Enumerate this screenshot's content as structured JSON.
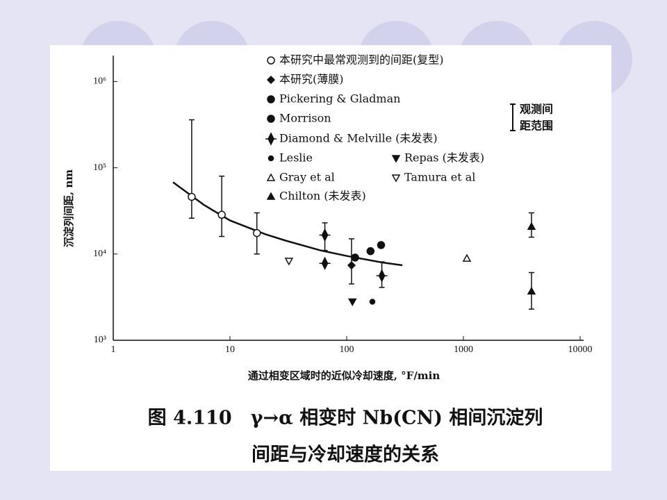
{
  "chart_data": {
    "type": "scatter",
    "x_label": "通过相变区域时的近似冷却速度, °F/min",
    "y_label": "沉淀列间距, nm",
    "log_x": true,
    "log_y": true,
    "xlim": [
      1,
      10000
    ],
    "xticks": [
      1,
      10,
      100,
      1000,
      10000
    ],
    "ylim": [
      1000,
      2000000
    ],
    "yticks": [
      {
        "value": 1000,
        "label": "10³"
      },
      {
        "value": 10000,
        "label": "10⁴"
      },
      {
        "value": 100000,
        "label": "10⁵"
      },
      {
        "value": 1000000,
        "label": "10⁶"
      }
    ],
    "color": "#111111",
    "series": [
      {
        "name": "本研究中最常观测到的间距(复型)",
        "marker": "circle-open",
        "x": [
          4.7,
          8.5,
          17
        ],
        "values": [
          46000,
          28500,
          17500
        ],
        "low": [
          26000,
          16000,
          10000
        ],
        "high": [
          360000,
          80000,
          30000
        ]
      },
      {
        "name": "本研究(薄膜)",
        "marker": "diamond",
        "x": [
          110
        ],
        "values": [
          7400
        ],
        "low": [
          4500
        ],
        "high": [
          15000
        ]
      },
      {
        "name": "Pickering & Gladman",
        "marker": "half-circle",
        "x": [
          118
        ],
        "values": [
          9100
        ],
        "low": [
          null
        ],
        "high": [
          null
        ]
      },
      {
        "name": "Morrison",
        "marker": "circle",
        "x": [
          160,
          197
        ],
        "values": [
          10800,
          12700
        ],
        "low": [
          null,
          null
        ],
        "high": [
          null,
          null
        ]
      },
      {
        "name": "Diamond & Melville (未发表)",
        "marker": "cross-diamond",
        "x": [
          65,
          65,
          200
        ],
        "values": [
          16600,
          7800,
          5600
        ],
        "low": [
          11000,
          null,
          4100
        ],
        "high": [
          23000,
          null,
          8100
        ]
      },
      {
        "name": "Leslie",
        "marker": "dot",
        "x": [
          166
        ],
        "values": [
          2800
        ],
        "low": [
          null
        ],
        "high": [
          null
        ]
      },
      {
        "name": "Repas (未发表)",
        "marker": "triangle-down",
        "x": [
          112
        ],
        "values": [
          2800
        ],
        "low": [
          null
        ],
        "high": [
          null
        ]
      },
      {
        "name": "Gray et al",
        "marker": "triangle-up-open",
        "x": [
          1070
        ],
        "values": [
          8900
        ],
        "low": [
          null
        ],
        "high": [
          null
        ]
      },
      {
        "name": "Tamura et al",
        "marker": "triangle-down-open",
        "x": [
          32
        ],
        "values": [
          8300
        ],
        "low": [
          null
        ],
        "high": [
          null
        ]
      },
      {
        "name": "Chilton (未发表)",
        "marker": "triangle-up",
        "x": [
          3830,
          3830
        ],
        "values": [
          20800,
          3700
        ],
        "low": [
          15700,
          2300
        ],
        "high": [
          30000,
          6100
        ]
      }
    ],
    "fit_curve": {
      "x": [
        3.25,
        6,
        10,
        20,
        30,
        60,
        100,
        200,
        300
      ],
      "values": [
        68000,
        37000,
        24500,
        17000,
        14300,
        11000,
        9500,
        8000,
        7400
      ]
    },
    "range_note": [
      "观测间",
      "距范围"
    ],
    "caption": [
      "图 4.110　γ→α 相变时 Nb(CN) 相间沉淀列",
      "间距与冷却速度的关系"
    ]
  }
}
